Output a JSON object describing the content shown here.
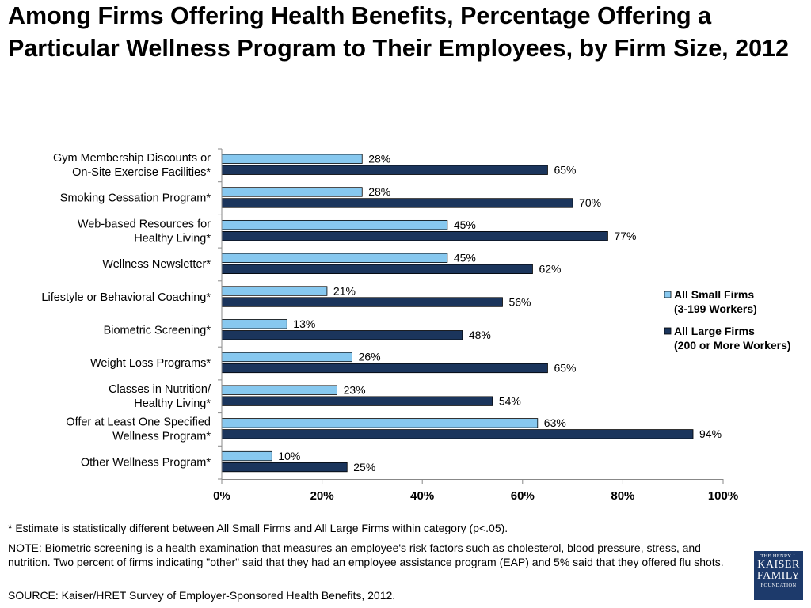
{
  "title": "Among Firms Offering Health Benefits, Percentage Offering a Particular Wellness Program to Their Employees, by Firm Size, 2012",
  "chart_data": {
    "type": "bar",
    "orientation": "horizontal",
    "categories": [
      [
        "Gym Membership Discounts or",
        "On-Site Exercise Facilities*"
      ],
      [
        "Smoking Cessation Program*"
      ],
      [
        "Web-based Resources for",
        "Healthy Living*"
      ],
      [
        "Wellness Newsletter*"
      ],
      [
        "Lifestyle or Behavioral Coaching*"
      ],
      [
        "Biometric Screening*"
      ],
      [
        "Weight Loss Programs*"
      ],
      [
        "Classes in Nutrition/",
        "Healthy Living*"
      ],
      [
        "Offer at Least One Specified",
        "Wellness Program*"
      ],
      [
        "Other Wellness Program*"
      ]
    ],
    "series": [
      {
        "name": [
          "All Small Firms",
          "(3-199 Workers)"
        ],
        "color": "#87c8ef",
        "values": [
          28,
          28,
          45,
          45,
          21,
          13,
          26,
          23,
          63,
          10
        ],
        "labels": [
          "28%",
          "28%",
          "45%",
          "45%",
          "21%",
          "13%",
          "26%",
          "23%",
          "63%",
          "10%"
        ]
      },
      {
        "name": [
          "All Large Firms",
          "(200 or More Workers)"
        ],
        "color": "#1b355c",
        "values": [
          65,
          70,
          77,
          62,
          56,
          48,
          65,
          54,
          94,
          25
        ],
        "labels": [
          "65%",
          "70%",
          "77%",
          "62%",
          "56%",
          "48%",
          "65%",
          "54%",
          "94%",
          "25%"
        ]
      }
    ],
    "xlim": [
      0,
      100
    ],
    "x_ticks": [
      0,
      20,
      40,
      60,
      80,
      100
    ],
    "x_tick_labels": [
      "0%",
      "20%",
      "40%",
      "60%",
      "80%",
      "100%"
    ],
    "grid": false,
    "legend_position": "right"
  },
  "footnotes": {
    "star": "* Estimate is statistically different between All Small Firms and All Large Firms within category (p<.05).",
    "note": "NOTE: Biometric screening is a health examination that measures an employee's risk factors such as cholesterol, blood pressure, stress, and nutrition. Two percent of firms indicating \"other\" said that they had an employee assistance program (EAP)  and 5% said that they offered flu shots.",
    "source": "SOURCE: Kaiser/HRET Survey of Employer-Sponsored Health Benefits, 2012."
  },
  "logo": {
    "line1": "THE HENRY J.",
    "line2": "KAISER",
    "line3": "FAMILY",
    "line4": "FOUNDATION"
  }
}
